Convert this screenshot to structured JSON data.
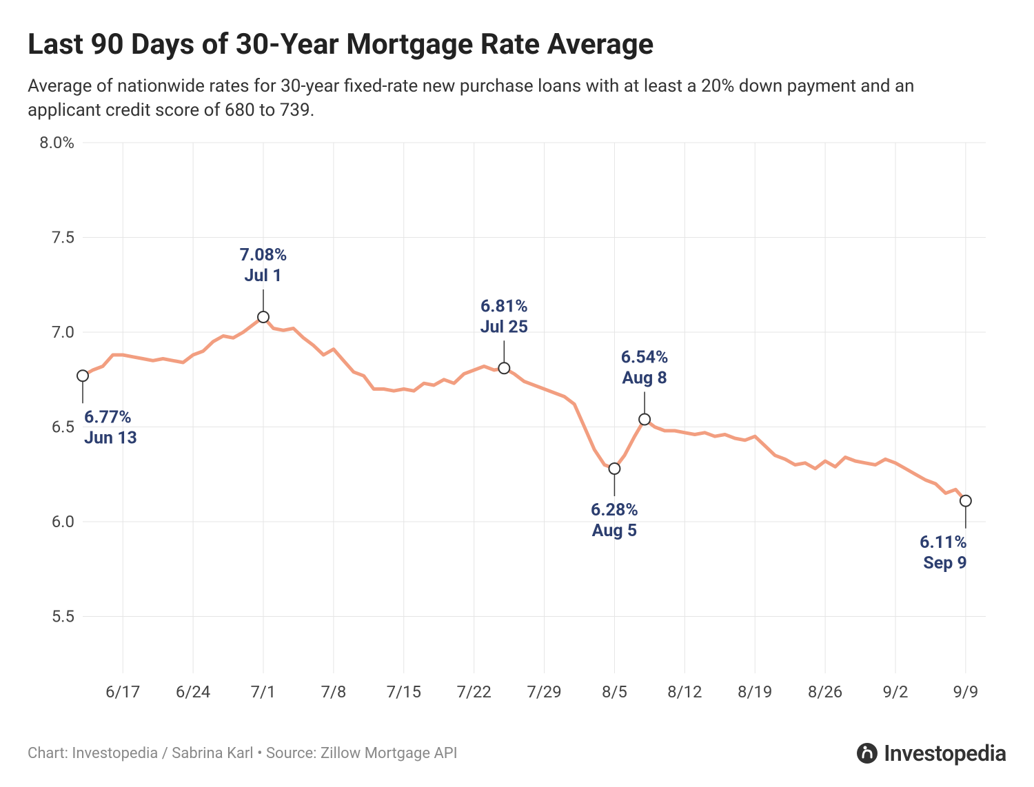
{
  "title": "Last 90 Days of 30-Year Mortgage Rate Average",
  "subtitle": "Average of nationwide rates for 30-year fixed-rate new purchase loans with at least a 20% down payment and an applicant credit score of 680 to 739.",
  "credit": "Chart: Investopedia / Sabrina Karl • Source: Zillow Mortgage API",
  "brand": "Investopedia",
  "chart": {
    "type": "line",
    "x_domain_days": [
      0,
      90
    ],
    "x_ticks": [
      {
        "day": 4,
        "label": "6/17"
      },
      {
        "day": 11,
        "label": "6/24"
      },
      {
        "day": 18,
        "label": "7/1"
      },
      {
        "day": 25,
        "label": "7/8"
      },
      {
        "day": 32,
        "label": "7/15"
      },
      {
        "day": 39,
        "label": "7/22"
      },
      {
        "day": 46,
        "label": "7/29"
      },
      {
        "day": 53,
        "label": "8/5"
      },
      {
        "day": 60,
        "label": "8/12"
      },
      {
        "day": 67,
        "label": "8/19"
      },
      {
        "day": 74,
        "label": "8/26"
      },
      {
        "day": 81,
        "label": "9/2"
      },
      {
        "day": 88,
        "label": "9/9"
      }
    ],
    "y_domain": [
      5.2,
      8.0
    ],
    "y_ticks": [
      {
        "val": 8.0,
        "label": "8.0%"
      },
      {
        "val": 7.5,
        "label": "7.5"
      },
      {
        "val": 7.0,
        "label": "7.0"
      },
      {
        "val": 6.5,
        "label": "6.5"
      },
      {
        "val": 6.0,
        "label": "6.0"
      },
      {
        "val": 5.5,
        "label": "5.5"
      }
    ],
    "line_color": "#f29e80",
    "line_width": 5,
    "marker_stroke": "#333333",
    "marker_fill": "#ffffff",
    "marker_radius": 8,
    "grid_color": "#e5e5e5",
    "background_color": "#ffffff",
    "annotation_color": "#2c3e6f",
    "annotation_fontsize": 25,
    "axis_fontsize": 24,
    "series": [
      {
        "day": 0,
        "rate": 6.77
      },
      {
        "day": 1,
        "rate": 6.8
      },
      {
        "day": 2,
        "rate": 6.82
      },
      {
        "day": 3,
        "rate": 6.88
      },
      {
        "day": 4,
        "rate": 6.88
      },
      {
        "day": 5,
        "rate": 6.87
      },
      {
        "day": 6,
        "rate": 6.86
      },
      {
        "day": 7,
        "rate": 6.85
      },
      {
        "day": 8,
        "rate": 6.86
      },
      {
        "day": 9,
        "rate": 6.85
      },
      {
        "day": 10,
        "rate": 6.84
      },
      {
        "day": 11,
        "rate": 6.88
      },
      {
        "day": 12,
        "rate": 6.9
      },
      {
        "day": 13,
        "rate": 6.95
      },
      {
        "day": 14,
        "rate": 6.98
      },
      {
        "day": 15,
        "rate": 6.97
      },
      {
        "day": 16,
        "rate": 7.0
      },
      {
        "day": 17,
        "rate": 7.04
      },
      {
        "day": 18,
        "rate": 7.08
      },
      {
        "day": 19,
        "rate": 7.02
      },
      {
        "day": 20,
        "rate": 7.01
      },
      {
        "day": 21,
        "rate": 7.02
      },
      {
        "day": 22,
        "rate": 6.97
      },
      {
        "day": 23,
        "rate": 6.93
      },
      {
        "day": 24,
        "rate": 6.88
      },
      {
        "day": 25,
        "rate": 6.91
      },
      {
        "day": 26,
        "rate": 6.85
      },
      {
        "day": 27,
        "rate": 6.79
      },
      {
        "day": 28,
        "rate": 6.77
      },
      {
        "day": 29,
        "rate": 6.7
      },
      {
        "day": 30,
        "rate": 6.7
      },
      {
        "day": 31,
        "rate": 6.69
      },
      {
        "day": 32,
        "rate": 6.7
      },
      {
        "day": 33,
        "rate": 6.69
      },
      {
        "day": 34,
        "rate": 6.73
      },
      {
        "day": 35,
        "rate": 6.72
      },
      {
        "day": 36,
        "rate": 6.75
      },
      {
        "day": 37,
        "rate": 6.73
      },
      {
        "day": 38,
        "rate": 6.78
      },
      {
        "day": 39,
        "rate": 6.8
      },
      {
        "day": 40,
        "rate": 6.82
      },
      {
        "day": 41,
        "rate": 6.8
      },
      {
        "day": 42,
        "rate": 6.81
      },
      {
        "day": 43,
        "rate": 6.78
      },
      {
        "day": 44,
        "rate": 6.74
      },
      {
        "day": 45,
        "rate": 6.72
      },
      {
        "day": 46,
        "rate": 6.7
      },
      {
        "day": 47,
        "rate": 6.68
      },
      {
        "day": 48,
        "rate": 6.66
      },
      {
        "day": 49,
        "rate": 6.62
      },
      {
        "day": 50,
        "rate": 6.5
      },
      {
        "day": 51,
        "rate": 6.38
      },
      {
        "day": 52,
        "rate": 6.3
      },
      {
        "day": 53,
        "rate": 6.28
      },
      {
        "day": 54,
        "rate": 6.35
      },
      {
        "day": 55,
        "rate": 6.45
      },
      {
        "day": 56,
        "rate": 6.54
      },
      {
        "day": 57,
        "rate": 6.5
      },
      {
        "day": 58,
        "rate": 6.48
      },
      {
        "day": 59,
        "rate": 6.48
      },
      {
        "day": 60,
        "rate": 6.47
      },
      {
        "day": 61,
        "rate": 6.46
      },
      {
        "day": 62,
        "rate": 6.47
      },
      {
        "day": 63,
        "rate": 6.45
      },
      {
        "day": 64,
        "rate": 6.46
      },
      {
        "day": 65,
        "rate": 6.44
      },
      {
        "day": 66,
        "rate": 6.43
      },
      {
        "day": 67,
        "rate": 6.45
      },
      {
        "day": 68,
        "rate": 6.4
      },
      {
        "day": 69,
        "rate": 6.35
      },
      {
        "day": 70,
        "rate": 6.33
      },
      {
        "day": 71,
        "rate": 6.3
      },
      {
        "day": 72,
        "rate": 6.31
      },
      {
        "day": 73,
        "rate": 6.28
      },
      {
        "day": 74,
        "rate": 6.32
      },
      {
        "day": 75,
        "rate": 6.29
      },
      {
        "day": 76,
        "rate": 6.34
      },
      {
        "day": 77,
        "rate": 6.32
      },
      {
        "day": 78,
        "rate": 6.31
      },
      {
        "day": 79,
        "rate": 6.3
      },
      {
        "day": 80,
        "rate": 6.33
      },
      {
        "day": 81,
        "rate": 6.31
      },
      {
        "day": 82,
        "rate": 6.28
      },
      {
        "day": 83,
        "rate": 6.25
      },
      {
        "day": 84,
        "rate": 6.22
      },
      {
        "day": 85,
        "rate": 6.2
      },
      {
        "day": 86,
        "rate": 6.15
      },
      {
        "day": 87,
        "rate": 6.17
      },
      {
        "day": 88,
        "rate": 6.11
      }
    ],
    "annotations": [
      {
        "day": 0,
        "rate": 6.77,
        "pct": "6.77%",
        "date": "Jun 13",
        "pos": "below",
        "align": "start"
      },
      {
        "day": 18,
        "rate": 7.08,
        "pct": "7.08%",
        "date": "Jul 1",
        "pos": "above",
        "align": "middle"
      },
      {
        "day": 42,
        "rate": 6.81,
        "pct": "6.81%",
        "date": "Jul 25",
        "pos": "above",
        "align": "middle"
      },
      {
        "day": 53,
        "rate": 6.28,
        "pct": "6.28%",
        "date": "Aug 5",
        "pos": "below",
        "align": "middle"
      },
      {
        "day": 56,
        "rate": 6.54,
        "pct": "6.54%",
        "date": "Aug 8",
        "pos": "above",
        "align": "middle"
      },
      {
        "day": 88,
        "rate": 6.11,
        "pct": "6.11%",
        "date": "Sep 9",
        "pos": "below",
        "align": "end"
      }
    ]
  }
}
